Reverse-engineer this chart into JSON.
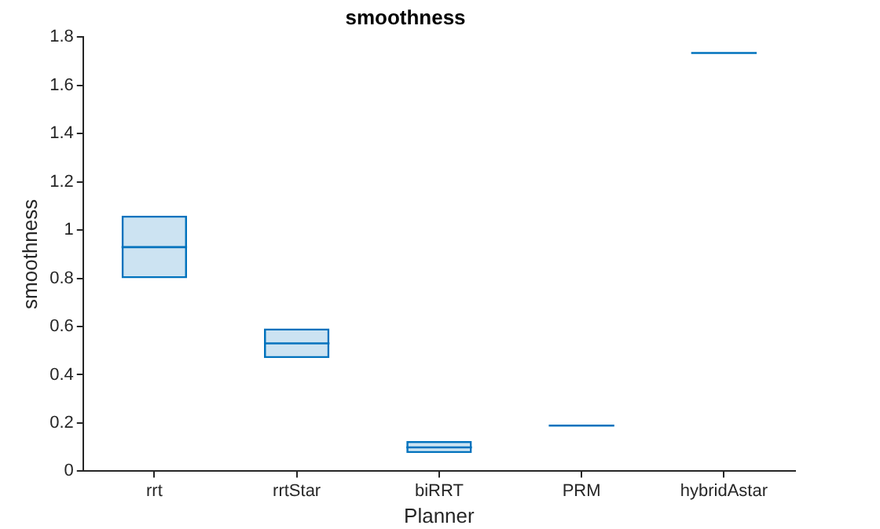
{
  "chart_data": {
    "type": "box",
    "title": "smoothness",
    "xlabel": "Planner",
    "ylabel": "smoothness",
    "categories": [
      "rrt",
      "rrtStar",
      "biRRT",
      "PRM",
      "hybridAstar"
    ],
    "series": [
      {
        "color": "#0072bd",
        "boxes": [
          {
            "low": 0.8,
            "q1": 0.8,
            "median": 0.929,
            "q3": 1.06,
            "high": 1.06
          },
          {
            "low": 0.469,
            "q1": 0.469,
            "median": 0.53,
            "q3": 0.592,
            "high": 0.592
          },
          {
            "low": 0.075,
            "q1": 0.075,
            "median": 0.099,
            "q3": 0.125,
            "high": 0.125
          },
          {
            "low": 0.189,
            "q1": 0.189,
            "median": 0.189,
            "q3": 0.189,
            "high": 0.189
          },
          {
            "low": 1.734,
            "q1": 1.734,
            "median": 1.734,
            "q3": 1.734,
            "high": 1.734
          }
        ]
      }
    ],
    "ylim": [
      0,
      1.8
    ],
    "yticks": [
      0,
      0.2,
      0.4,
      0.6,
      0.8,
      1,
      1.2,
      1.4,
      1.6,
      1.8
    ],
    "grid": false,
    "legend": false
  }
}
